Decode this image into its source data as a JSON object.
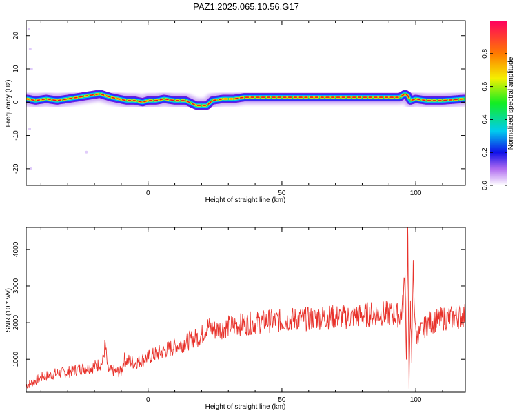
{
  "title": "PAZ1.2025.065.10.56.G17",
  "chart_data": [
    {
      "type": "heatmap",
      "xlabel": "Height of straight line (km)",
      "ylabel": "Frequency (Hz)",
      "xlim": [
        -45.5,
        118.5
      ],
      "ylim": [
        -25,
        24.5
      ],
      "xticks": [
        "0",
        "50",
        "100"
      ],
      "yticks": [
        "20",
        "10",
        "0",
        "-10",
        "-20"
      ],
      "colorbar": {
        "label": "Normalized spectral amplitude",
        "range": [
          0,
          1
        ],
        "ticks": [
          "0.0",
          "0.2",
          "0.4",
          "0.6",
          "0.8"
        ]
      },
      "ridge_frequency_hz": {
        "x": [
          -45,
          -42,
          -38,
          -34,
          -30,
          -26,
          -22,
          -18,
          -16,
          -14,
          -11,
          -8,
          -5,
          -2,
          0,
          3,
          6,
          10,
          14,
          18,
          22,
          24,
          28,
          32,
          36,
          40,
          50,
          60,
          70,
          80,
          90,
          94,
          96,
          97,
          98,
          100,
          104,
          110,
          118
        ],
        "y": [
          1,
          0.5,
          1,
          0.5,
          1,
          1.5,
          2,
          2.5,
          2,
          1.5,
          1,
          0.5,
          0.5,
          0,
          0.5,
          0.5,
          1,
          0.5,
          0.5,
          -1,
          -1,
          0.5,
          1,
          1,
          1.5,
          1.5,
          1.5,
          1.5,
          1.5,
          1.5,
          1.5,
          1.5,
          2.5,
          2,
          0.5,
          1,
          0.5,
          0.5,
          1
        ]
      }
    },
    {
      "type": "line",
      "xlabel": "Height of straight line (km)",
      "ylabel": "SNR (10 * v/v)",
      "xlim": [
        -45.5,
        118.5
      ],
      "ylim": [
        100,
        4600
      ],
      "xticks": [
        "0",
        "50",
        "100"
      ],
      "yticks": [
        "1000",
        "2000",
        "3000",
        "4000"
      ],
      "series": [
        {
          "color": "#e8322b",
          "x": [
            -45,
            -40,
            -35,
            -30,
            -25,
            -20,
            -17,
            -16,
            -15,
            -10,
            -9,
            -5,
            0,
            5,
            10,
            15,
            20,
            22,
            25,
            30,
            35,
            40,
            45,
            50,
            55,
            60,
            65,
            70,
            75,
            80,
            85,
            90,
            94,
            95,
            96,
            96.5,
            97,
            97.5,
            98,
            98.5,
            99,
            100,
            105,
            110,
            118
          ],
          "y": [
            300,
            500,
            600,
            650,
            750,
            800,
            900,
            1400,
            700,
            650,
            1000,
            900,
            1050,
            1200,
            1350,
            1500,
            1650,
            1900,
            1800,
            1900,
            1950,
            2000,
            2050,
            2050,
            2100,
            2100,
            2150,
            2150,
            2150,
            2200,
            2250,
            2250,
            2200,
            2350,
            3300,
            1000,
            4600,
            200,
            2600,
            900,
            3500,
            1600,
            2000,
            2100,
            2200
          ]
        }
      ]
    }
  ]
}
